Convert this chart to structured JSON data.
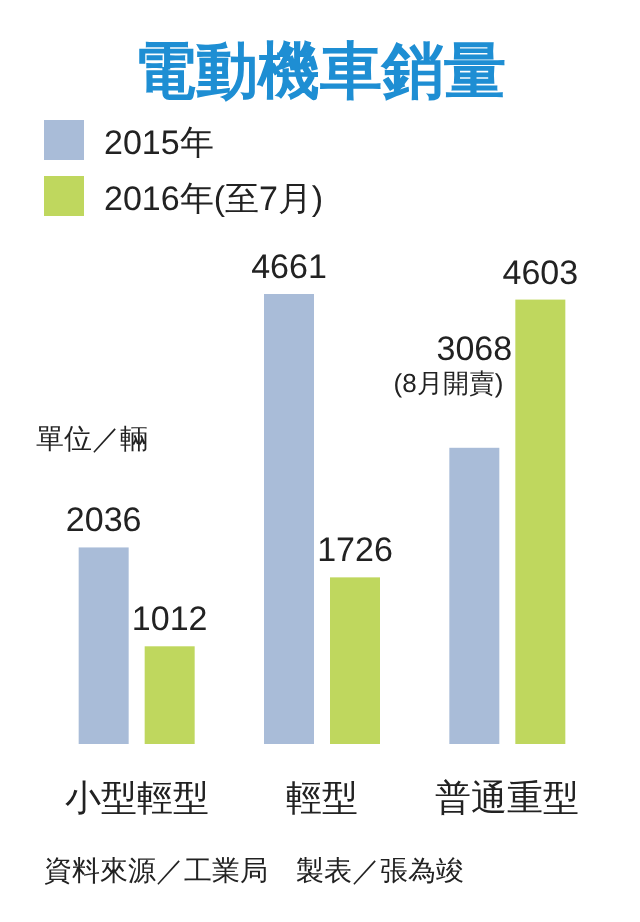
{
  "chart_data": {
    "type": "bar",
    "title": "電動機車銷量",
    "categories": [
      "小型輕型",
      "輕型",
      "普通重型"
    ],
    "series": [
      {
        "name": "2015年",
        "color": "#a9bcd8",
        "values": [
          2036,
          4661,
          3068
        ]
      },
      {
        "name": "2016年(至7月)",
        "color": "#bfd75e",
        "values": [
          1012,
          1726,
          4603
        ]
      }
    ],
    "data_labels": true,
    "legend": "top left",
    "annotations": [
      "單位／輛",
      {
        "text": "(8月開賣)",
        "x": "普通重型",
        "y": 3068
      },
      "資料來源／工業局　製表／張為竣"
    ]
  }
}
